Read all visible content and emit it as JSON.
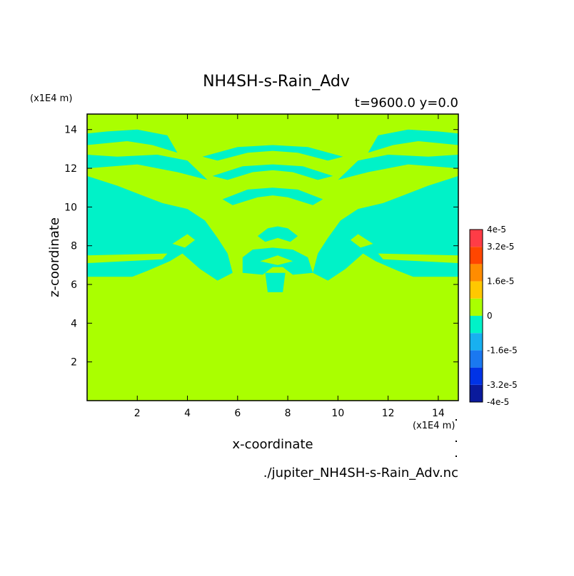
{
  "chart_data": {
    "type": "heatmap",
    "title": "NH4SH-s-Rain_Adv",
    "subtitle": "t=9600.0 y=0.0",
    "xlabel": "x-coordinate",
    "ylabel": "z-coordinate",
    "x_unit": "(x1E4 m)",
    "y_unit": "(x1E4 m)",
    "source_file": "./jupiter_NH4SH-s-Rain_Adv.nc",
    "xlim": [
      0,
      14.8
    ],
    "ylim": [
      0,
      14.8
    ],
    "x_ticks": [
      2,
      4,
      6,
      8,
      10,
      12,
      14
    ],
    "y_ticks": [
      2,
      4,
      6,
      8,
      10,
      12,
      14
    ],
    "background_value": 0,
    "levels": [
      -4e-05,
      -3.2e-05,
      -2.4e-05,
      -1.6e-05,
      -8e-06,
      0,
      8e-06,
      1.6e-05,
      2.4e-05,
      3.2e-05,
      4e-05
    ],
    "level_colors": [
      "#0a1a9c",
      "#0033e6",
      "#1a78f0",
      "#18b0f0",
      "#00f2c8",
      "#aaff00",
      "#ffc800",
      "#ff8c00",
      "#ff4600",
      "#ff3c46"
    ],
    "colorbar_labels": [
      "4e-5",
      "3.2e-5",
      "1.6e-5",
      "0",
      "-1.6e-5",
      "-3.2e-5",
      "-4e-5"
    ],
    "colorbar_label_values": [
      4e-05,
      3.2e-05,
      1.6e-05,
      0,
      -1.6e-05,
      -3.2e-05,
      -4e-05
    ],
    "negative_region_value": -4e-06,
    "negative_regions": [
      {
        "name": "left-lobe",
        "polygon": [
          [
            0,
            6.4
          ],
          [
            1.8,
            6.4
          ],
          [
            2.4,
            6.7
          ],
          [
            3.3,
            7.2
          ],
          [
            3.8,
            7.6
          ],
          [
            4.5,
            6.8
          ],
          [
            5.2,
            6.2
          ],
          [
            5.8,
            6.6
          ],
          [
            5.6,
            7.6
          ],
          [
            5.2,
            8.4
          ],
          [
            4.7,
            9.3
          ],
          [
            4.0,
            9.9
          ],
          [
            3.0,
            10.2
          ],
          [
            2.2,
            10.6
          ],
          [
            1.2,
            11.1
          ],
          [
            0,
            11.6
          ]
        ]
      },
      {
        "name": "right-lobe",
        "polygon": [
          [
            14.8,
            6.4
          ],
          [
            13.0,
            6.4
          ],
          [
            12.4,
            6.7
          ],
          [
            11.5,
            7.2
          ],
          [
            11.0,
            7.6
          ],
          [
            10.3,
            6.8
          ],
          [
            9.6,
            6.2
          ],
          [
            9.0,
            6.6
          ],
          [
            9.2,
            7.6
          ],
          [
            9.6,
            8.4
          ],
          [
            10.1,
            9.3
          ],
          [
            10.8,
            9.9
          ],
          [
            11.8,
            10.2
          ],
          [
            12.6,
            10.6
          ],
          [
            13.6,
            11.1
          ],
          [
            14.8,
            11.6
          ]
        ]
      },
      {
        "name": "center-lower",
        "polygon": [
          [
            6.2,
            6.6
          ],
          [
            7.0,
            6.5
          ],
          [
            7.4,
            6.9
          ],
          [
            7.8,
            6.9
          ],
          [
            8.2,
            6.5
          ],
          [
            9.0,
            6.6
          ],
          [
            8.8,
            7.4
          ],
          [
            8.2,
            7.8
          ],
          [
            7.4,
            7.9
          ],
          [
            6.6,
            7.8
          ],
          [
            6.2,
            7.4
          ]
        ]
      },
      {
        "name": "center-stem",
        "polygon": [
          [
            7.2,
            5.6
          ],
          [
            7.8,
            5.6
          ],
          [
            7.9,
            6.6
          ],
          [
            7.1,
            6.6
          ]
        ]
      },
      {
        "name": "center-cap",
        "polygon": [
          [
            6.8,
            8.5
          ],
          [
            7.2,
            8.9
          ],
          [
            7.6,
            9.0
          ],
          [
            8.0,
            8.9
          ],
          [
            8.4,
            8.5
          ],
          [
            8.1,
            8.2
          ],
          [
            7.6,
            8.4
          ],
          [
            7.1,
            8.2
          ]
        ]
      },
      {
        "name": "upper-band-left",
        "polygon": [
          [
            0,
            12.0
          ],
          [
            2.0,
            12.2
          ],
          [
            3.6,
            11.8
          ],
          [
            4.8,
            11.4
          ],
          [
            4.0,
            12.4
          ],
          [
            2.8,
            12.7
          ],
          [
            1.2,
            12.6
          ],
          [
            0,
            12.7
          ]
        ]
      },
      {
        "name": "upper-band-right",
        "polygon": [
          [
            14.8,
            12.0
          ],
          [
            12.8,
            12.2
          ],
          [
            11.2,
            11.8
          ],
          [
            10.0,
            11.4
          ],
          [
            10.8,
            12.4
          ],
          [
            12.0,
            12.7
          ],
          [
            13.6,
            12.6
          ],
          [
            14.8,
            12.7
          ]
        ]
      },
      {
        "name": "top-band-left",
        "polygon": [
          [
            0,
            13.2
          ],
          [
            1.6,
            13.4
          ],
          [
            2.6,
            13.2
          ],
          [
            3.6,
            12.8
          ],
          [
            3.2,
            13.7
          ],
          [
            2.0,
            14.0
          ],
          [
            0.8,
            13.9
          ],
          [
            0,
            13.8
          ]
        ]
      },
      {
        "name": "top-band-right",
        "polygon": [
          [
            14.8,
            13.2
          ],
          [
            13.2,
            13.4
          ],
          [
            12.2,
            13.2
          ],
          [
            11.2,
            12.8
          ],
          [
            11.6,
            13.7
          ],
          [
            12.8,
            14.0
          ],
          [
            14.0,
            13.9
          ],
          [
            14.8,
            13.8
          ]
        ]
      },
      {
        "name": "mid-arc",
        "polygon": [
          [
            5.4,
            10.4
          ],
          [
            6.4,
            10.9
          ],
          [
            7.4,
            11.0
          ],
          [
            8.4,
            10.9
          ],
          [
            9.4,
            10.4
          ],
          [
            9.0,
            10.1
          ],
          [
            8.0,
            10.5
          ],
          [
            7.4,
            10.6
          ],
          [
            6.8,
            10.5
          ],
          [
            5.8,
            10.1
          ]
        ]
      },
      {
        "name": "upper-arc",
        "polygon": [
          [
            5.0,
            11.6
          ],
          [
            6.2,
            12.1
          ],
          [
            7.4,
            12.2
          ],
          [
            8.6,
            12.1
          ],
          [
            9.8,
            11.6
          ],
          [
            9.2,
            11.4
          ],
          [
            8.2,
            11.8
          ],
          [
            7.4,
            11.9
          ],
          [
            6.6,
            11.8
          ],
          [
            5.6,
            11.4
          ]
        ]
      },
      {
        "name": "top-arc",
        "polygon": [
          [
            4.6,
            12.6
          ],
          [
            6.0,
            13.1
          ],
          [
            7.4,
            13.2
          ],
          [
            8.8,
            13.1
          ],
          [
            10.2,
            12.6
          ],
          [
            9.6,
            12.4
          ],
          [
            8.4,
            12.8
          ],
          [
            7.4,
            12.9
          ],
          [
            6.4,
            12.8
          ],
          [
            5.2,
            12.4
          ]
        ]
      },
      {
        "name": "left-inner-streak",
        "polygon": [
          [
            1.6,
            9.0
          ],
          [
            3.4,
            9.2
          ],
          [
            4.6,
            8.8
          ],
          [
            4.2,
            9.5
          ],
          [
            3.0,
            9.7
          ],
          [
            1.8,
            9.4
          ]
        ]
      },
      {
        "name": "right-inner-streak",
        "polygon": [
          [
            13.2,
            9.0
          ],
          [
            11.4,
            9.2
          ],
          [
            10.2,
            8.8
          ],
          [
            10.6,
            9.5
          ],
          [
            11.8,
            9.7
          ],
          [
            13.0,
            9.4
          ]
        ]
      }
    ],
    "inner_positive_regions": [
      {
        "name": "left-eye",
        "polygon": [
          [
            3.4,
            8.1
          ],
          [
            4.0,
            8.6
          ],
          [
            4.3,
            8.3
          ],
          [
            3.9,
            7.9
          ]
        ]
      },
      {
        "name": "right-eye",
        "polygon": [
          [
            11.4,
            8.1
          ],
          [
            10.8,
            8.6
          ],
          [
            10.5,
            8.3
          ],
          [
            10.9,
            7.9
          ]
        ]
      },
      {
        "name": "left-strip",
        "polygon": [
          [
            0,
            7.1
          ],
          [
            3.0,
            7.3
          ],
          [
            3.2,
            7.6
          ],
          [
            0,
            7.5
          ]
        ]
      },
      {
        "name": "right-strip",
        "polygon": [
          [
            14.8,
            7.1
          ],
          [
            11.8,
            7.3
          ],
          [
            11.6,
            7.6
          ],
          [
            14.8,
            7.5
          ]
        ]
      },
      {
        "name": "center-gap",
        "polygon": [
          [
            6.9,
            7.2
          ],
          [
            7.6,
            7.5
          ],
          [
            8.2,
            7.2
          ],
          [
            7.6,
            7.0
          ]
        ]
      }
    ]
  }
}
